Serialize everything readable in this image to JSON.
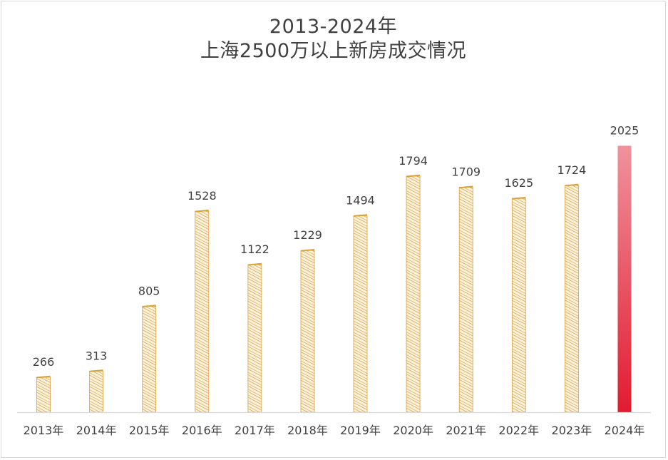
{
  "chart_data": {
    "type": "bar",
    "title_lines": [
      "2013-2024年",
      "上海2500万以上新房成交情况"
    ],
    "categories": [
      "2013年",
      "2014年",
      "2015年",
      "2016年",
      "2017年",
      "2018年",
      "2019年",
      "2020年",
      "2021年",
      "2022年",
      "2023年",
      "2024年"
    ],
    "values": [
      266,
      313,
      805,
      1528,
      1122,
      1229,
      1494,
      1794,
      1709,
      1625,
      1724,
      2025
    ],
    "xlabel": "",
    "ylabel": "",
    "grid": false,
    "legend": "none",
    "data_labels": true,
    "colors": {
      "bar_fill": "#fdf3e3",
      "bar_hatch": "#d9a13b",
      "highlight_top": "#f0929c",
      "highlight_bottom": "#e21b30",
      "axis": "#d9d9d9",
      "text": "#404040"
    },
    "highlight_index": 11
  }
}
